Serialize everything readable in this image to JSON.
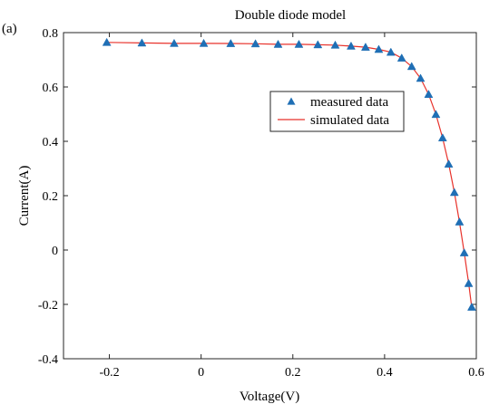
{
  "panel_label": "(a)",
  "chart_data": {
    "type": "line",
    "title": "Double diode model",
    "xlabel": "Voltage(V)",
    "ylabel": "Current(A)",
    "xlim": [
      -0.3,
      0.6
    ],
    "ylim": [
      -0.4,
      0.8
    ],
    "xticks": [
      -0.2,
      0,
      0.2,
      0.4,
      0.6
    ],
    "xtick_labels": [
      "-0.2",
      "0",
      "0.2",
      "0.4",
      "0.6"
    ],
    "yticks": [
      -0.4,
      -0.2,
      0,
      0.2,
      0.4,
      0.6,
      0.8
    ],
    "ytick_labels": [
      "-0.4",
      "-0.2",
      "0",
      "0.2",
      "0.4",
      "0.6",
      "0.8"
    ],
    "grid": false,
    "legend_position": "upper-right",
    "series": [
      {
        "name": "measured data",
        "style": "markers",
        "marker": "triangle",
        "color": "#1f6fb5",
        "x": [
          -0.2057,
          -0.1291,
          -0.0588,
          0.0057,
          0.0646,
          0.1185,
          0.1678,
          0.2132,
          0.2545,
          0.2924,
          0.3269,
          0.3585,
          0.3873,
          0.4137,
          0.4373,
          0.459,
          0.4784,
          0.496,
          0.5119,
          0.5265,
          0.5398,
          0.5521,
          0.5633,
          0.5736,
          0.5833,
          0.59
        ],
        "y": [
          0.764,
          0.762,
          0.7605,
          0.7605,
          0.76,
          0.759,
          0.757,
          0.757,
          0.7555,
          0.754,
          0.7505,
          0.7465,
          0.7385,
          0.728,
          0.7065,
          0.6755,
          0.632,
          0.573,
          0.499,
          0.413,
          0.3165,
          0.212,
          0.1035,
          -0.01,
          -0.123,
          -0.21
        ]
      },
      {
        "name": "simulated data",
        "style": "line",
        "color": "#e8322b",
        "x": [
          -0.2057,
          -0.1291,
          -0.0588,
          0.0057,
          0.0646,
          0.1185,
          0.1678,
          0.2132,
          0.2545,
          0.2924,
          0.3269,
          0.3585,
          0.3873,
          0.4137,
          0.4373,
          0.459,
          0.4784,
          0.496,
          0.5119,
          0.5265,
          0.5398,
          0.5521,
          0.5633,
          0.5736,
          0.5833,
          0.59
        ],
        "y": [
          0.764,
          0.762,
          0.7605,
          0.7605,
          0.76,
          0.759,
          0.757,
          0.757,
          0.7555,
          0.754,
          0.7505,
          0.7465,
          0.7385,
          0.728,
          0.7065,
          0.6755,
          0.632,
          0.573,
          0.499,
          0.413,
          0.3165,
          0.212,
          0.1035,
          -0.01,
          -0.123,
          -0.21
        ]
      }
    ]
  }
}
